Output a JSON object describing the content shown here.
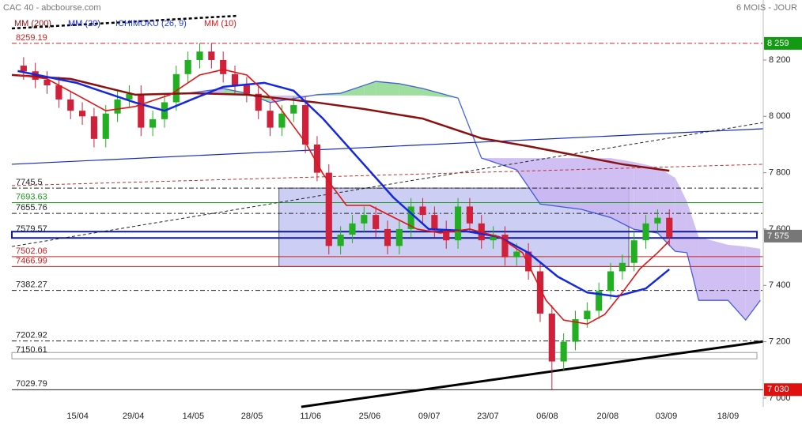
{
  "chart_data": {
    "type": "candlestick",
    "title": "CAC 40 - abcbourse.com",
    "subtitle": "6 MOIS - JOUR",
    "xlim": [
      0,
      128
    ],
    "ylim": [
      6969,
      8413
    ],
    "xticks": [
      {
        "value": 11.2,
        "label": "15/04"
      },
      {
        "value": 20.7,
        "label": "29/04"
      },
      {
        "value": 30.9,
        "label": "14/05"
      },
      {
        "value": 40.9,
        "label": "28/05"
      },
      {
        "value": 50.9,
        "label": "11/06"
      },
      {
        "value": 60.95,
        "label": "25/06"
      },
      {
        "value": 71.1,
        "label": "09/07"
      },
      {
        "value": 81.1,
        "label": "23/07"
      },
      {
        "value": 91.2,
        "label": "06/08"
      },
      {
        "value": 101.5,
        "label": "20/08"
      },
      {
        "value": 111.5,
        "label": "03/09"
      },
      {
        "value": 122,
        "label": "18/09"
      }
    ],
    "yticks": [
      {
        "value": 8200,
        "label": "8 200"
      },
      {
        "value": 8000,
        "label": "8 000"
      },
      {
        "value": 7800,
        "label": "7 800"
      },
      {
        "value": 7600,
        "label": "7 600"
      },
      {
        "value": 7400,
        "label": "7 400"
      },
      {
        "value": 7200,
        "label": "7 200"
      },
      {
        "value": 7000,
        "label": "7 000"
      }
    ],
    "up_color": "#22b022",
    "down_color": "#d0203a",
    "candles": {
      "x": [
        2,
        4,
        6,
        8,
        10,
        12,
        14,
        16,
        18,
        20,
        22,
        24,
        26,
        28,
        30,
        32,
        34,
        36,
        38,
        40,
        42,
        44,
        46,
        48,
        50,
        52,
        54,
        56,
        58,
        60,
        62,
        64,
        66,
        68,
        70,
        72,
        74,
        76,
        78,
        80,
        82,
        84,
        86,
        88,
        90,
        92,
        94,
        96,
        98,
        100,
        102,
        104,
        106,
        108,
        110,
        112
      ],
      "open": [
        8180,
        8160,
        8130,
        8110,
        8060,
        8020,
        8000,
        7920,
        8010,
        8060,
        8080,
        7960,
        7990,
        8050,
        8150,
        8200,
        8230,
        8200,
        8150,
        8110,
        8080,
        8020,
        7960,
        8010,
        8040,
        7900,
        7800,
        7540,
        7580,
        7620,
        7650,
        7600,
        7540,
        7600,
        7680,
        7650,
        7600,
        7560,
        7680,
        7620,
        7560,
        7580,
        7500,
        7520,
        7450,
        7300,
        7130,
        7200,
        7280,
        7310,
        7380,
        7450,
        7480,
        7560,
        7620,
        7640
      ],
      "high": [
        8210,
        8190,
        8160,
        8140,
        8090,
        8050,
        8030,
        8040,
        8090,
        8110,
        8110,
        8020,
        8080,
        8180,
        8230,
        8260,
        8260,
        8230,
        8180,
        8140,
        8110,
        8050,
        8040,
        8070,
        8070,
        7930,
        7830,
        7610,
        7650,
        7680,
        7680,
        7630,
        7630,
        7710,
        7710,
        7680,
        7630,
        7710,
        7710,
        7650,
        7610,
        7610,
        7550,
        7550,
        7480,
        7330,
        7230,
        7310,
        7340,
        7410,
        7480,
        7510,
        7590,
        7650,
        7670,
        7670
      ],
      "low": [
        8130,
        8100,
        8080,
        8030,
        7990,
        7970,
        7890,
        7890,
        7980,
        8030,
        7930,
        7930,
        7960,
        8020,
        8120,
        8170,
        8170,
        8120,
        8080,
        8050,
        7990,
        7930,
        7930,
        7980,
        7870,
        7770,
        7510,
        7510,
        7550,
        7590,
        7570,
        7510,
        7510,
        7570,
        7620,
        7570,
        7530,
        7530,
        7590,
        7530,
        7530,
        7470,
        7470,
        7420,
        7270,
        7030,
        7100,
        7170,
        7250,
        7280,
        7350,
        7420,
        7450,
        7530,
        7590,
        7540
      ],
      "close": [
        8160,
        8130,
        8110,
        8060,
        8020,
        8000,
        7920,
        8010,
        8060,
        8080,
        7960,
        7990,
        8050,
        8150,
        8200,
        8230,
        8200,
        8150,
        8110,
        8080,
        8020,
        7960,
        8010,
        8040,
        7900,
        7800,
        7540,
        7580,
        7620,
        7650,
        7600,
        7540,
        7600,
        7680,
        7650,
        7600,
        7560,
        7680,
        7620,
        7560,
        7580,
        7500,
        7520,
        7450,
        7300,
        7130,
        7200,
        7280,
        7310,
        7380,
        7450,
        7480,
        7560,
        7620,
        7640,
        7570
      ]
    },
    "cloud": {
      "name": "ICHIMOKU (26, 9)",
      "color": "#1e3ce0",
      "up_color": "#8fd88f",
      "down_color": "#c8b4f0",
      "x": [
        24,
        30,
        36,
        40,
        44,
        48,
        52,
        56,
        60,
        62,
        66,
        70,
        76,
        80,
        86,
        90,
        97,
        102,
        106,
        110,
        113,
        115,
        117,
        122,
        125,
        127.5
      ],
      "spanA": [
        8077,
        8082,
        8099,
        8082,
        8049,
        8063,
        8077,
        8082,
        8110,
        8124,
        8116,
        8099,
        8065,
        7852,
        7810,
        7689,
        7670,
        7641,
        7599,
        7586,
        7521,
        7516,
        7347,
        7347,
        7277,
        7347
      ],
      "spanB": [
        8082,
        8085,
        8082,
        8077,
        8074,
        8074,
        8074,
        8074,
        8074,
        8074,
        8074,
        8074,
        8065,
        7852,
        7852,
        7852,
        7852,
        7852,
        7838,
        7819,
        7782,
        7698,
        7572,
        7544,
        7538,
        7530
      ]
    },
    "series": [
      {
        "name": "MM (200)",
        "color": "#8b1010",
        "width": 2.5,
        "x": [
          0,
          10,
          21,
          31,
          40,
          52,
          60,
          70,
          80,
          88,
          95,
          104,
          112
        ],
        "values": [
          8147,
          8133,
          8077,
          8082,
          8077,
          8049,
          8026,
          7992,
          7922,
          7894,
          7866,
          7830,
          7807
        ]
      },
      {
        "name": "MM (20)",
        "color": "#1428e0",
        "width": 2.5,
        "x": [
          1,
          11,
          21,
          26,
          31,
          36,
          43,
          48,
          53,
          59,
          65,
          71,
          77,
          83,
          88,
          93,
          98,
          103,
          108,
          112
        ],
        "values": [
          8161,
          8119,
          8049,
          8020,
          8063,
          8105,
          8119,
          8091,
          7992,
          7852,
          7712,
          7600,
          7594,
          7572,
          7516,
          7431,
          7375,
          7361,
          7389,
          7457
        ]
      },
      {
        "name": "MM (10)",
        "color": "#e01414",
        "width": 1.6,
        "x": [
          1,
          6,
          11,
          16,
          21,
          27,
          32,
          36,
          40,
          45,
          50,
          53,
          57,
          61,
          65,
          69,
          73,
          78,
          83,
          87,
          91,
          94,
          98,
          101,
          104,
          107,
          110,
          112
        ],
        "values": [
          8147,
          8133,
          8077,
          8020,
          8035,
          8077,
          8147,
          8166,
          8147,
          8049,
          7908,
          7796,
          7684,
          7684,
          7642,
          7600,
          7586,
          7600,
          7572,
          7516,
          7347,
          7277,
          7263,
          7297,
          7375,
          7459,
          7516,
          7558
        ]
      }
    ],
    "levels": [
      {
        "value": 8259.19,
        "color": "#d02020",
        "style": "dashdot"
      },
      {
        "value": 7745.5,
        "color": "#222222",
        "style": "dashdot"
      },
      {
        "value": 7693.63,
        "color": "#1a9a1a",
        "style": "solid"
      },
      {
        "value": 7655.76,
        "color": "#222222",
        "style": "dashdot"
      },
      {
        "value": 7579.57,
        "color": "#101c90",
        "style": "band"
      },
      {
        "value": 7502.06,
        "color": "#d02020",
        "style": "solid"
      },
      {
        "value": 7466.99,
        "color": "#d02020",
        "style": "solid"
      },
      {
        "value": 7382.27,
        "color": "#222222",
        "style": "dashdot"
      },
      {
        "value": 7202.92,
        "color": "#222222",
        "style": "dashdot"
      },
      {
        "value": 7150.61,
        "color": "#999999",
        "style": "band"
      },
      {
        "value": 7029.79,
        "color": "#222222",
        "style": "solid"
      }
    ],
    "zone": {
      "x": [
        45.5,
        105.1
      ],
      "y": [
        7745.5,
        7466.99
      ],
      "color": "#9aa0e8"
    },
    "trendlines": [
      {
        "x": [
          0,
          128
        ],
        "y": [
          7830,
          7956
        ],
        "color": "#1428c0",
        "width": 1.2,
        "dash": false
      },
      {
        "x": [
          0,
          128
        ],
        "y": [
          7538,
          7978
        ],
        "color": "#222222",
        "width": 1,
        "dash": true
      },
      {
        "x": [
          0,
          128
        ],
        "y": [
          7754,
          7830
        ],
        "color": "#c03030",
        "width": 1,
        "dash": true
      },
      {
        "x": [
          49.3,
          128
        ],
        "y": [
          6969,
          7201
        ],
        "color": "#000000",
        "width": 3,
        "dash": false
      },
      {
        "x": [
          0,
          38.5
        ],
        "y": [
          8312,
          8357
        ],
        "color": "#000000",
        "width": 2.5,
        "dash": true
      }
    ],
    "markers": [
      {
        "value": 8259,
        "label": "8 259",
        "color": "#129a12"
      },
      {
        "value": 7575,
        "label": "7 575",
        "color": "#777777"
      },
      {
        "value": 7030,
        "label": "7 030",
        "color": "#e01010"
      }
    ]
  }
}
